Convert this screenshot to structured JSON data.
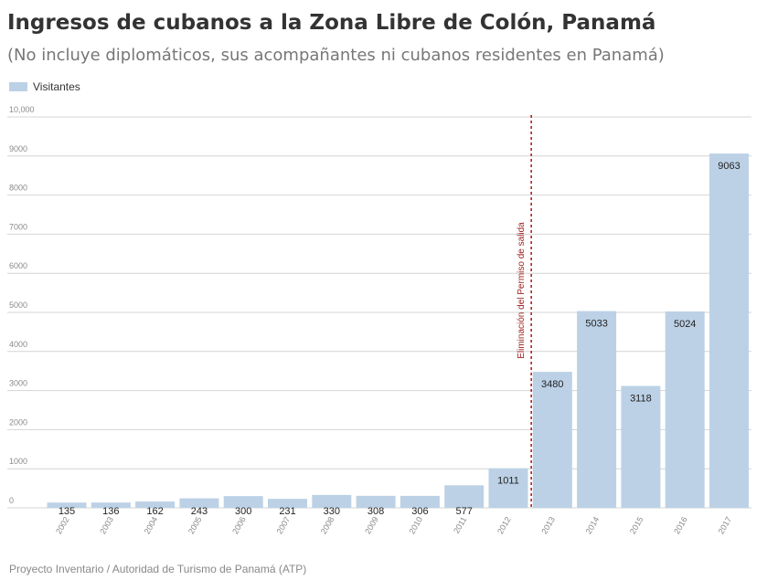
{
  "header": {
    "title": "Ingresos de cubanos a la Zona Libre de Colón, Panamá",
    "subtitle": "(No incluye diplomáticos, sus acompañantes ni cubanos residentes en Panamá)"
  },
  "source": "Proyecto Inventario / Autoridad de Turismo de Panamá (ATP)",
  "colors": {
    "bar": "#bcd1e6",
    "grid": "#d4d4d4",
    "event_line": "#b22222"
  },
  "chart_data": {
    "type": "bar",
    "title": "Ingresos de cubanos a la Zona Libre de Colón, Panamá",
    "subtitle": "(No incluye diplomáticos, sus acompañantes ni cubanos residentes en Panamá)",
    "xlabel": "",
    "ylabel": "",
    "ylim": [
      0,
      10000
    ],
    "yticks": [
      "0",
      "1000",
      "2000",
      "3000",
      "4000",
      "5000",
      "6000",
      "7000",
      "8000",
      "9000",
      "10,000"
    ],
    "grid": true,
    "legend": "top-left",
    "categories": [
      "2002",
      "2003",
      "2004",
      "2005",
      "2006",
      "2007",
      "2008",
      "2009",
      "2010",
      "2011",
      "2012",
      "2013",
      "2014",
      "2015",
      "2016",
      "2017"
    ],
    "series": [
      {
        "name": "Visitantes",
        "values": [
          135,
          136,
          162,
          243,
          300,
          231,
          330,
          308,
          306,
          577,
          1011,
          3480,
          5033,
          3118,
          5024,
          9063
        ]
      }
    ],
    "annotations": [
      {
        "text": "Eliminación del Permiso de salida",
        "between": [
          "2012",
          "2013"
        ],
        "style": "dashed-vertical-line"
      }
    ]
  }
}
